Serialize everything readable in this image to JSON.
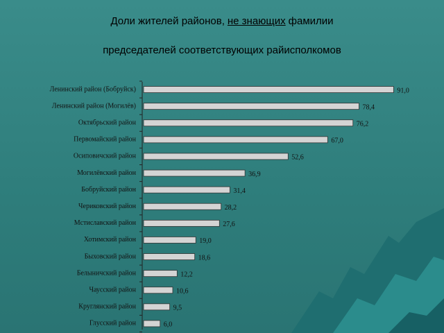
{
  "chart_data": {
    "type": "bar",
    "orientation": "horizontal",
    "title": [
      "Доли жителей районов,",
      "не знающих",
      "фамилии",
      "председателей соответствующих райисполкомов"
    ],
    "categories": [
      "Ленинский район (Бобруйск)",
      "Ленинский район (Могилёв)",
      "Октябрьский район",
      "Первомайский район",
      "Осиповичский район",
      "Могилёвский район",
      "Бобруйский район",
      "Чериковский район",
      "Мстиславский район",
      "Хотимский район",
      "Быховский район",
      "Белыничский район",
      "Чаусский район",
      "Круглянский район",
      "Глусский район"
    ],
    "values": [
      91.0,
      78.4,
      76.2,
      67.0,
      52.6,
      36.9,
      31.4,
      28.2,
      27.6,
      19.0,
      18.6,
      12.2,
      10.6,
      9.5,
      6.0
    ],
    "value_labels": [
      "91,0",
      "78,4",
      "76,2",
      "67,0",
      "52,6",
      "36,9",
      "31,4",
      "28,2",
      "27,6",
      "19,0",
      "18,6",
      "12,2",
      "10,6",
      "9,5",
      "6,0"
    ],
    "color": "#d4d4d4"
  }
}
